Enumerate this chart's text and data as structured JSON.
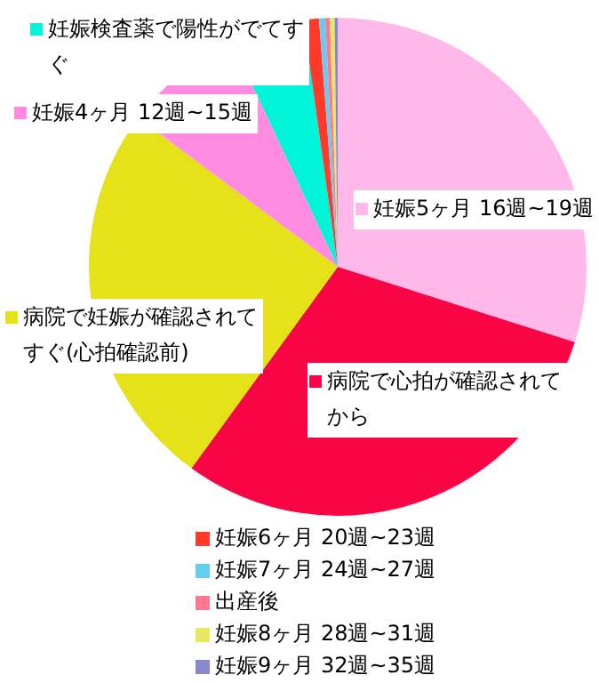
{
  "chart_data": {
    "type": "pie",
    "categories": [
      "妊娠5ヶ月 16週~19週",
      "病院で心拍が確認されてから",
      "病院で妊娠が確認されてすぐ(心拍確認前)",
      "妊娠4ヶ月 12週~15週",
      "妊娠検査薬で陽性がでてすぐ",
      "妊娠6ヶ月 20週~23週",
      "妊娠7ヶ月 24週~27週",
      "出産後",
      "妊娠8ヶ月 28週~31週",
      "妊娠9ヶ月 32週~35週"
    ],
    "values": [
      29.9,
      30.1,
      25.2,
      7.8,
      4.8,
      1.0,
      0.4,
      0.3,
      0.3,
      0.2
    ],
    "colors": [
      "#ffb8ea",
      "#f90546",
      "#e6e21a",
      "#ff8ce0",
      "#00f5d8",
      "#ff3a2a",
      "#66ccf0",
      "#ff7890",
      "#e8e860",
      "#8888cc"
    ],
    "legend": "bottom"
  }
}
